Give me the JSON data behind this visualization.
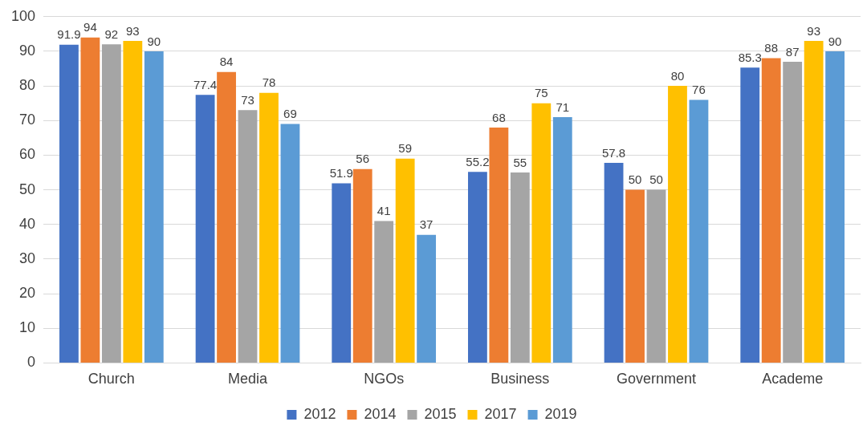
{
  "chart_data": {
    "type": "bar",
    "categories": [
      "Church",
      "Media",
      "NGOs",
      "Business",
      "Government",
      "Academe"
    ],
    "series": [
      {
        "name": "2012",
        "color": "#4472c4",
        "values": [
          91.9,
          77.4,
          51.9,
          55.2,
          57.8,
          85.3
        ]
      },
      {
        "name": "2014",
        "color": "#ed7d31",
        "values": [
          94,
          84,
          56,
          68,
          50,
          88
        ]
      },
      {
        "name": "2015",
        "color": "#a5a5a5",
        "values": [
          92,
          73,
          41,
          55,
          50,
          87
        ]
      },
      {
        "name": "2017",
        "color": "#ffc000",
        "values": [
          93,
          78,
          59,
          75,
          80,
          93
        ]
      },
      {
        "name": "2019",
        "color": "#5b9bd5",
        "values": [
          90,
          69,
          37,
          71,
          76,
          90
        ]
      }
    ],
    "ylim": [
      0,
      100
    ],
    "yticks": [
      0,
      10,
      20,
      30,
      40,
      50,
      60,
      70,
      80,
      90,
      100
    ],
    "grid": "y",
    "legend": "bottom",
    "data_labels": true
  }
}
